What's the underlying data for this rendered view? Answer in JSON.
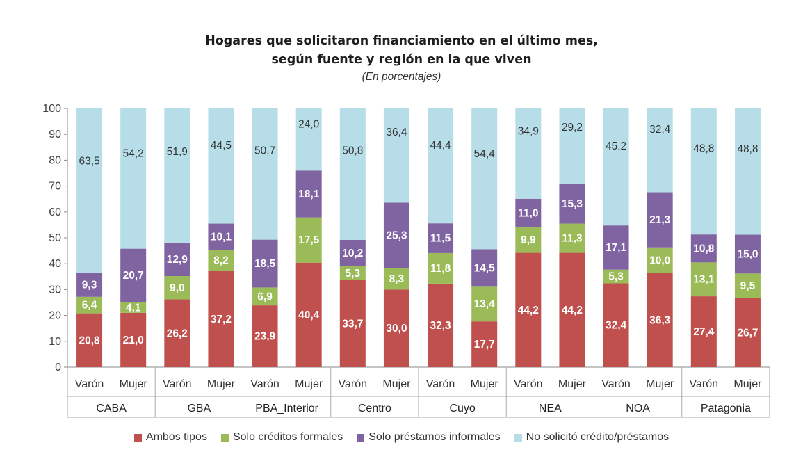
{
  "chart_data": {
    "type": "bar",
    "stacked": true,
    "title": "Hogares que solicitaron financiamiento en el último mes,",
    "title_line2": "según fuente y región en la que viven",
    "subtitle": "(En porcentajes)",
    "ylim": [
      0,
      100
    ],
    "yticks": [
      "0",
      "10",
      "20",
      "30",
      "40",
      "50",
      "60",
      "70",
      "80",
      "90",
      "100"
    ],
    "regions": [
      "CABA",
      "GBA",
      "PBA_Interior",
      "Centro",
      "Cuyo",
      "NEA",
      "NOA",
      "Patagonia"
    ],
    "sub_categories": [
      "Varón",
      "Mujer"
    ],
    "categories": [
      "CABA Varón",
      "CABA Mujer",
      "GBA Varón",
      "GBA Mujer",
      "PBA_Interior Varón",
      "PBA_Interior Mujer",
      "Centro Varón",
      "Centro Mujer",
      "Cuyo Varón",
      "Cuyo Mujer",
      "NEA Varón",
      "NEA Mujer",
      "NOA Varón",
      "NOA Mujer",
      "Patagonia Varón",
      "Patagonia Mujer"
    ],
    "series": [
      {
        "name": "Ambos tipos",
        "color": "#c0504d",
        "values": [
          20.8,
          21.0,
          26.2,
          37.2,
          23.9,
          40.4,
          33.7,
          30.0,
          32.3,
          17.7,
          44.2,
          44.2,
          32.4,
          36.3,
          27.4,
          26.7
        ],
        "labels": [
          "20,8",
          "21,0",
          "26,2",
          "37,2",
          "23,9",
          "40,4",
          "33,7",
          "30,0",
          "32,3",
          "17,7",
          "44,2",
          "44,2",
          "32,4",
          "36,3",
          "27,4",
          "26,7"
        ]
      },
      {
        "name": "Solo créditos formales",
        "color": "#9bbb59",
        "values": [
          6.4,
          4.1,
          9.0,
          8.2,
          6.9,
          17.5,
          5.3,
          8.3,
          11.8,
          13.4,
          9.9,
          11.3,
          5.3,
          10.0,
          13.1,
          9.5
        ],
        "labels": [
          "6,4",
          "4,1",
          "9,0",
          "8,2",
          "6,9",
          "17,5",
          "5,3",
          "8,3",
          "11,8",
          "13,4",
          "9,9",
          "11,3",
          "5,3",
          "10,0",
          "13,1",
          "9,5"
        ]
      },
      {
        "name": "Solo préstamos informales",
        "color": "#8064a2",
        "values": [
          9.3,
          20.7,
          12.9,
          10.1,
          18.5,
          18.1,
          10.2,
          25.3,
          11.5,
          14.5,
          11.0,
          15.3,
          17.1,
          21.3,
          10.8,
          15.0
        ],
        "labels": [
          "9,3",
          "20,7",
          "12,9",
          "10,1",
          "18,5",
          "18,1",
          "10,2",
          "25,3",
          "11,5",
          "14,5",
          "11,0",
          "15,3",
          "17,1",
          "21,3",
          "10,8",
          "15,0"
        ]
      },
      {
        "name": "No solicitó crédito/préstamos",
        "color": "#b7dee8",
        "values": [
          63.5,
          54.2,
          51.9,
          44.5,
          50.7,
          24.0,
          50.8,
          36.4,
          44.4,
          54.4,
          34.9,
          29.2,
          45.2,
          32.4,
          48.8,
          48.8
        ],
        "labels": [
          "63,5",
          "54,2",
          "51,9",
          "44,5",
          "50,7",
          "24,0",
          "50,8",
          "36,4",
          "44,4",
          "54,4",
          "34,9",
          "29,2",
          "45,2",
          "32,4",
          "48,8",
          "48,8"
        ]
      }
    ],
    "legend_position": "bottom",
    "grid": false
  }
}
